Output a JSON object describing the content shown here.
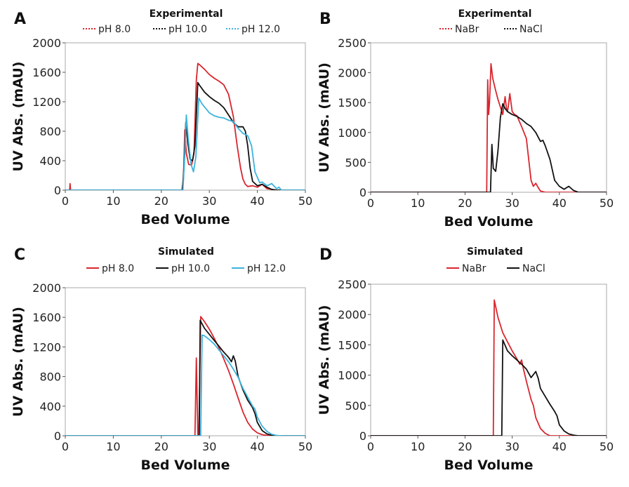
{
  "chart_data": [
    {
      "panel": "A",
      "type": "line",
      "title": "Experimental",
      "xlabel": "Bed Volume",
      "ylabel": "UV Abs. (mAU)",
      "xlim": [
        0,
        50
      ],
      "ylim": [
        0,
        2000
      ],
      "xticks": [
        "0",
        "10",
        "20",
        "30",
        "40",
        "50"
      ],
      "yticks": [
        "0",
        "400",
        "800",
        "1200",
        "1600",
        "2000"
      ],
      "xtick_values": [
        0,
        10,
        20,
        30,
        40,
        50
      ],
      "ytick_values": [
        0,
        400,
        800,
        1200,
        1600,
        2000
      ],
      "legend_style": "dotted",
      "series": [
        {
          "name": "pH 8.0",
          "color": "#d9262e",
          "x": [
            0,
            0.9,
            1.0,
            1.1,
            1.3,
            24.3,
            24.6,
            24.9,
            25.2,
            25.7,
            26.3,
            26.8,
            27.3,
            27.6,
            28.0,
            29.0,
            30.0,
            31.0,
            32.0,
            33.0,
            34.0,
            35.0,
            35.8,
            36.5,
            37.0,
            37.5,
            38.0,
            39.0,
            40.0,
            41.0,
            42.0,
            43.0,
            44.0,
            45.0,
            50.0
          ],
          "y": [
            0,
            0,
            90,
            0,
            0,
            0,
            150,
            820,
            500,
            350,
            340,
            500,
            1500,
            1720,
            1700,
            1640,
            1570,
            1520,
            1480,
            1430,
            1300,
            1000,
            600,
            300,
            150,
            80,
            50,
            60,
            40,
            80,
            20,
            10,
            0,
            0,
            0
          ]
        },
        {
          "name": "pH 10.0",
          "color": "#111111",
          "x": [
            0,
            24.4,
            24.8,
            25.1,
            25.5,
            26.0,
            26.5,
            27.0,
            27.6,
            28.0,
            29.0,
            30.0,
            31.0,
            32.0,
            33.0,
            34.0,
            35.0,
            36.0,
            37.0,
            37.5,
            38.0,
            38.5,
            39.0,
            40.0,
            41.0,
            42.0,
            43.0,
            44.0,
            45.0,
            50.0
          ],
          "y": [
            0,
            0,
            400,
            920,
            650,
            420,
            400,
            600,
            1460,
            1420,
            1330,
            1270,
            1220,
            1180,
            1120,
            1020,
            920,
            860,
            860,
            800,
            600,
            300,
            120,
            60,
            80,
            40,
            10,
            0,
            0,
            0
          ]
        },
        {
          "name": "pH 12.0",
          "color": "#3bb3dd",
          "x": [
            0,
            24.5,
            24.9,
            25.2,
            25.6,
            26.2,
            26.7,
            27.2,
            27.8,
            28.5,
            30.0,
            31.0,
            32.0,
            33.0,
            34.0,
            35.0,
            36.0,
            37.0,
            38.0,
            38.8,
            39.5,
            40.5,
            41.0,
            42.0,
            43.0,
            44.0,
            44.5,
            45.0,
            50.0
          ],
          "y": [
            0,
            0,
            500,
            1020,
            700,
            350,
            250,
            450,
            1250,
            1170,
            1050,
            1010,
            990,
            980,
            950,
            930,
            840,
            770,
            740,
            600,
            250,
            100,
            110,
            60,
            90,
            20,
            40,
            0,
            0
          ]
        }
      ]
    },
    {
      "panel": "B",
      "type": "line",
      "title": "Experimental",
      "xlabel": "Bed Volume",
      "ylabel": "UV Abs. (mAU)",
      "xlim": [
        0,
        50
      ],
      "ylim": [
        0,
        2500
      ],
      "xticks": [
        "0",
        "10",
        "20",
        "30",
        "40",
        "50"
      ],
      "yticks": [
        "0",
        "500",
        "1000",
        "1500",
        "2000",
        "2500"
      ],
      "xtick_values": [
        0,
        10,
        20,
        30,
        40,
        50
      ],
      "ytick_values": [
        0,
        500,
        1000,
        1500,
        2000,
        2500
      ],
      "legend_style": "dotted",
      "series": [
        {
          "name": "NaBr",
          "color": "#d9262e",
          "x": [
            0,
            24.6,
            24.8,
            25.0,
            25.2,
            25.5,
            25.9,
            26.5,
            27.0,
            28.0,
            28.5,
            28.8,
            29.0,
            29.2,
            29.5,
            30.0,
            30.5,
            31.0,
            32.0,
            33.0,
            34.0,
            34.5,
            35.0,
            35.5,
            36.0,
            37.0,
            50.0
          ],
          "y": [
            0,
            0,
            1880,
            1300,
            1500,
            2150,
            1900,
            1700,
            1550,
            1300,
            1600,
            1400,
            1350,
            1450,
            1650,
            1350,
            1300,
            1280,
            1100,
            900,
            200,
            100,
            150,
            80,
            20,
            0,
            0
          ]
        },
        {
          "name": "NaCl",
          "color": "#111111",
          "x": [
            0,
            25.4,
            25.7,
            26.0,
            26.5,
            27.0,
            27.5,
            28.0,
            28.5,
            29.0,
            30.0,
            31.0,
            32.0,
            33.0,
            34.0,
            35.0,
            36.0,
            36.5,
            37.0,
            38.0,
            39.0,
            40.0,
            41.0,
            42.0,
            43.0,
            44.0,
            50.0
          ],
          "y": [
            0,
            0,
            800,
            400,
            350,
            700,
            1250,
            1480,
            1400,
            1350,
            1300,
            1270,
            1220,
            1150,
            1100,
            1000,
            850,
            870,
            780,
            550,
            200,
            100,
            50,
            100,
            30,
            0,
            0
          ]
        }
      ]
    },
    {
      "panel": "C",
      "type": "line",
      "title": "Simulated",
      "xlabel": "Bed Volume",
      "ylabel": "UV Abs. (mAU)",
      "xlim": [
        0,
        50
      ],
      "ylim": [
        0,
        2000
      ],
      "xticks": [
        "0",
        "10",
        "20",
        "30",
        "40",
        "50"
      ],
      "yticks": [
        "0",
        "400",
        "800",
        "1200",
        "1600",
        "2000"
      ],
      "xtick_values": [
        0,
        10,
        20,
        30,
        40,
        50
      ],
      "ytick_values": [
        0,
        400,
        800,
        1200,
        1600,
        2000
      ],
      "legend_style": "solid",
      "series": [
        {
          "name": "pH 8.0",
          "color": "#d9262e",
          "x": [
            0,
            27.0,
            27.3,
            27.6,
            27.8,
            28.2,
            29.0,
            30.0,
            31.0,
            32.0,
            33.0,
            34.0,
            35.0,
            36.0,
            37.0,
            38.0,
            39.0,
            40.0,
            41.0,
            42.0,
            43.0,
            44.0,
            50.0
          ],
          "y": [
            0,
            0,
            1050,
            0,
            0,
            1610,
            1540,
            1440,
            1320,
            1190,
            1040,
            880,
            700,
            510,
            320,
            180,
            90,
            40,
            15,
            5,
            0,
            0,
            0
          ]
        },
        {
          "name": "pH 10.0",
          "color": "#111111",
          "x": [
            0,
            27.9,
            28.1,
            28.4,
            29.0,
            30.0,
            31.0,
            32.0,
            33.0,
            34.0,
            34.6,
            35.0,
            35.4,
            36.0,
            37.0,
            38.0,
            39.0,
            39.5,
            40.0,
            41.0,
            42.0,
            43.0,
            44.0,
            45.0,
            50.0
          ],
          "y": [
            0,
            0,
            1560,
            1520,
            1450,
            1370,
            1290,
            1210,
            1130,
            1060,
            1000,
            1080,
            1010,
            800,
            620,
            480,
            380,
            300,
            180,
            70,
            25,
            8,
            0,
            0,
            0
          ]
        },
        {
          "name": "pH 12.0",
          "color": "#3bb3dd",
          "x": [
            0,
            28.2,
            28.5,
            29.0,
            30.0,
            31.0,
            32.0,
            33.0,
            34.0,
            35.0,
            36.0,
            37.0,
            38.0,
            39.0,
            39.5,
            40.0,
            41.0,
            42.0,
            43.0,
            44.0,
            45.0,
            50.0
          ],
          "y": [
            0,
            0,
            1360,
            1350,
            1300,
            1240,
            1160,
            1080,
            1000,
            900,
            790,
            640,
            520,
            400,
            360,
            250,
            130,
            60,
            20,
            5,
            0,
            0
          ]
        }
      ]
    },
    {
      "panel": "D",
      "type": "line",
      "title": "Simulated",
      "xlabel": "Bed Volume",
      "ylabel": "UV Abs. (mAU)",
      "xlim": [
        0,
        50
      ],
      "ylim": [
        0,
        2500
      ],
      "xticks": [
        "0",
        "10",
        "20",
        "30",
        "40",
        "50"
      ],
      "yticks": [
        "0",
        "500",
        "1000",
        "1500",
        "2000",
        "2500"
      ],
      "xtick_values": [
        0,
        10,
        20,
        30,
        40,
        50
      ],
      "ytick_values": [
        0,
        500,
        1000,
        1500,
        2000,
        2500
      ],
      "legend_style": "solid",
      "series": [
        {
          "name": "NaBr",
          "color": "#d9262e",
          "x": [
            0,
            26.0,
            26.2,
            27.0,
            28.0,
            29.0,
            30.0,
            31.0,
            31.6,
            32.0,
            32.4,
            33.0,
            34.0,
            34.5,
            35.0,
            36.0,
            37.0,
            38.0,
            50.0
          ],
          "y": [
            0,
            0,
            2240,
            1950,
            1700,
            1550,
            1400,
            1270,
            1180,
            1250,
            1100,
            900,
            600,
            500,
            300,
            120,
            40,
            0,
            0
          ]
        },
        {
          "name": "NaCl",
          "color": "#111111",
          "x": [
            0,
            27.8,
            28.0,
            29.0,
            30.0,
            31.0,
            32.0,
            33.0,
            34.0,
            34.6,
            35.0,
            35.5,
            36.0,
            37.0,
            38.0,
            39.0,
            39.5,
            40.0,
            41.0,
            42.0,
            43.0,
            44.0,
            50.0
          ],
          "y": [
            0,
            0,
            1580,
            1400,
            1320,
            1250,
            1180,
            1100,
            960,
            1020,
            1060,
            950,
            780,
            650,
            520,
            400,
            330,
            180,
            80,
            30,
            10,
            0,
            0
          ]
        }
      ]
    }
  ]
}
